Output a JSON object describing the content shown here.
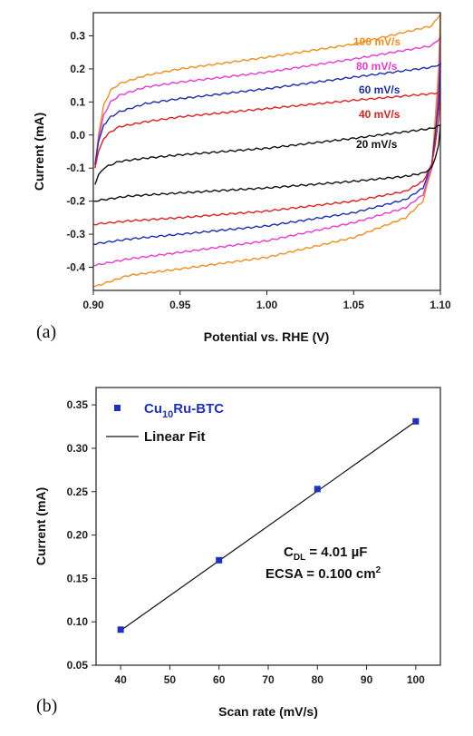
{
  "chart_data": [
    {
      "type": "line",
      "panel_label": "(a)",
      "xlabel": "Potential vs. RHE (V)",
      "ylabel": "Current (mA)",
      "xlim": [
        0.9,
        1.1
      ],
      "ylim": [
        -0.47,
        0.37
      ],
      "x_ticks": [
        "0.90",
        "0.95",
        "1.00",
        "1.05",
        "1.10"
      ],
      "y_ticks": [
        "-0.4",
        "-0.3",
        "-0.2",
        "-0.1",
        "0.0",
        "0.1",
        "0.2",
        "0.3"
      ],
      "series": [
        {
          "name": "100 mV/s",
          "color": "#f28e1c",
          "upper": [
            [
              0.901,
              -0.1
            ],
            [
              0.903,
              0.0
            ],
            [
              0.906,
              0.09
            ],
            [
              0.91,
              0.135
            ],
            [
              0.915,
              0.155
            ],
            [
              0.93,
              0.18
            ],
            [
              0.95,
              0.2
            ],
            [
              1.0,
              0.235
            ],
            [
              1.05,
              0.275
            ],
            [
              1.095,
              0.33
            ],
            [
              1.1,
              0.365
            ]
          ],
          "lower": [
            [
              1.1,
              0.365
            ],
            [
              1.099,
              0.2
            ],
            [
              1.097,
              0.05
            ],
            [
              1.095,
              -0.1
            ],
            [
              1.09,
              -0.2
            ],
            [
              1.08,
              -0.25
            ],
            [
              1.05,
              -0.31
            ],
            [
              1.0,
              -0.37
            ],
            [
              0.95,
              -0.405
            ],
            [
              0.92,
              -0.425
            ],
            [
              0.9,
              -0.46
            ]
          ]
        },
        {
          "name": "80 mV/s",
          "color": "#e83ad6",
          "upper": [
            [
              0.901,
              -0.09
            ],
            [
              0.903,
              -0.01
            ],
            [
              0.906,
              0.06
            ],
            [
              0.91,
              0.1
            ],
            [
              0.915,
              0.12
            ],
            [
              0.93,
              0.145
            ],
            [
              0.95,
              0.16
            ],
            [
              1.0,
              0.19
            ],
            [
              1.05,
              0.23
            ],
            [
              1.095,
              0.27
            ],
            [
              1.1,
              0.295
            ]
          ],
          "lower": [
            [
              1.1,
              0.295
            ],
            [
              1.099,
              0.15
            ],
            [
              1.097,
              0.0
            ],
            [
              1.095,
              -0.1
            ],
            [
              1.09,
              -0.18
            ],
            [
              1.08,
              -0.22
            ],
            [
              1.05,
              -0.265
            ],
            [
              1.0,
              -0.32
            ],
            [
              0.95,
              -0.355
            ],
            [
              0.92,
              -0.375
            ],
            [
              0.9,
              -0.395
            ]
          ]
        },
        {
          "name": "60 mV/s",
          "color": "#1a2fb0",
          "upper": [
            [
              0.901,
              -0.09
            ],
            [
              0.903,
              -0.02
            ],
            [
              0.906,
              0.03
            ],
            [
              0.91,
              0.055
            ],
            [
              0.915,
              0.07
            ],
            [
              0.93,
              0.095
            ],
            [
              0.95,
              0.11
            ],
            [
              1.0,
              0.14
            ],
            [
              1.05,
              0.175
            ],
            [
              1.095,
              0.205
            ],
            [
              1.1,
              0.215
            ]
          ],
          "lower": [
            [
              1.1,
              0.215
            ],
            [
              1.099,
              0.1
            ],
            [
              1.097,
              0.0
            ],
            [
              1.095,
              -0.09
            ],
            [
              1.09,
              -0.16
            ],
            [
              1.08,
              -0.195
            ],
            [
              1.05,
              -0.235
            ],
            [
              1.0,
              -0.275
            ],
            [
              0.95,
              -0.3
            ],
            [
              0.92,
              -0.315
            ],
            [
              0.9,
              -0.33
            ]
          ]
        },
        {
          "name": "40 mV/s",
          "color": "#e02020",
          "upper": [
            [
              0.901,
              -0.1
            ],
            [
              0.903,
              -0.05
            ],
            [
              0.906,
              -0.01
            ],
            [
              0.91,
              0.01
            ],
            [
              0.915,
              0.025
            ],
            [
              0.93,
              0.04
            ],
            [
              0.95,
              0.055
            ],
            [
              1.0,
              0.08
            ],
            [
              1.05,
              0.105
            ],
            [
              1.095,
              0.125
            ],
            [
              1.1,
              0.13
            ]
          ],
          "lower": [
            [
              1.1,
              0.13
            ],
            [
              1.099,
              0.05
            ],
            [
              1.097,
              -0.03
            ],
            [
              1.095,
              -0.09
            ],
            [
              1.09,
              -0.14
            ],
            [
              1.08,
              -0.17
            ],
            [
              1.05,
              -0.2
            ],
            [
              1.0,
              -0.23
            ],
            [
              0.95,
              -0.25
            ],
            [
              0.92,
              -0.26
            ],
            [
              0.9,
              -0.27
            ]
          ]
        },
        {
          "name": "20 mV/s",
          "color": "#111111",
          "upper": [
            [
              0.901,
              -0.15
            ],
            [
              0.903,
              -0.12
            ],
            [
              0.906,
              -0.1
            ],
            [
              0.91,
              -0.09
            ],
            [
              0.915,
              -0.08
            ],
            [
              0.93,
              -0.07
            ],
            [
              0.95,
              -0.06
            ],
            [
              1.0,
              -0.04
            ],
            [
              1.05,
              -0.01
            ],
            [
              1.095,
              0.02
            ],
            [
              1.1,
              0.03
            ]
          ],
          "lower": [
            [
              1.1,
              0.03
            ],
            [
              1.099,
              -0.03
            ],
            [
              1.097,
              -0.07
            ],
            [
              1.095,
              -0.1
            ],
            [
              1.09,
              -0.115
            ],
            [
              1.08,
              -0.125
            ],
            [
              1.05,
              -0.14
            ],
            [
              1.0,
              -0.16
            ],
            [
              0.95,
              -0.175
            ],
            [
              0.92,
              -0.185
            ],
            [
              0.9,
              -0.2
            ]
          ]
        }
      ]
    },
    {
      "type": "scatter",
      "panel_label": "(b)",
      "xlabel": "Scan rate (mV/s)",
      "ylabel": "Current (mA)",
      "xlim": [
        35,
        105
      ],
      "ylim": [
        0.05,
        0.37
      ],
      "x_ticks": [
        "40",
        "50",
        "60",
        "70",
        "80",
        "90",
        "100"
      ],
      "y_ticks": [
        "0.05",
        "0.10",
        "0.15",
        "0.20",
        "0.25",
        "0.30",
        "0.35"
      ],
      "legend": {
        "placement": "top-left",
        "points_label": {
          "base": "Cu",
          "sub": "10",
          "rest": "Ru-BTC"
        },
        "fit_label": "Linear Fit"
      },
      "points_color": "#1f2fbf",
      "x": [
        40,
        60,
        80,
        100
      ],
      "y": [
        0.091,
        0.171,
        0.253,
        0.331
      ],
      "fit": {
        "x0": 40,
        "y0": 0.09,
        "x1": 100,
        "y1": 0.331
      },
      "annotations": {
        "cdl": {
          "base": "C",
          "sub": "DL",
          "rest": " = 4.01 µF"
        },
        "ecsa": {
          "base": "ECSA = 0.100 cm",
          "sup": "2"
        }
      }
    }
  ]
}
